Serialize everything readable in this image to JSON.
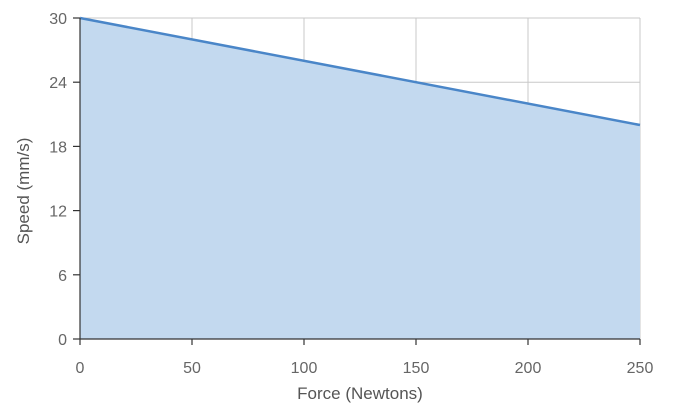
{
  "chart_data": {
    "type": "area",
    "title": "",
    "xlabel": "Force (Newtons)",
    "ylabel": "Speed (mm/s)",
    "xlim": [
      0,
      250
    ],
    "ylim": [
      0,
      30
    ],
    "x_ticks": [
      0,
      50,
      100,
      150,
      200,
      250
    ],
    "y_ticks": [
      0,
      6,
      12,
      18,
      24,
      30
    ],
    "x_tick_labels": [
      "0",
      "50",
      "100",
      "150",
      "200",
      "250"
    ],
    "y_tick_labels": [
      "0",
      "6",
      "12",
      "18",
      "24",
      "30"
    ],
    "grid": true,
    "legend": "none",
    "series": [
      {
        "x": [
          0,
          250
        ],
        "y": [
          30,
          20
        ]
      }
    ],
    "colors": {
      "line": "#4a86c8",
      "fill": "#c3d9ef",
      "grid": "#c8c8c8",
      "axis": "#333333"
    }
  }
}
